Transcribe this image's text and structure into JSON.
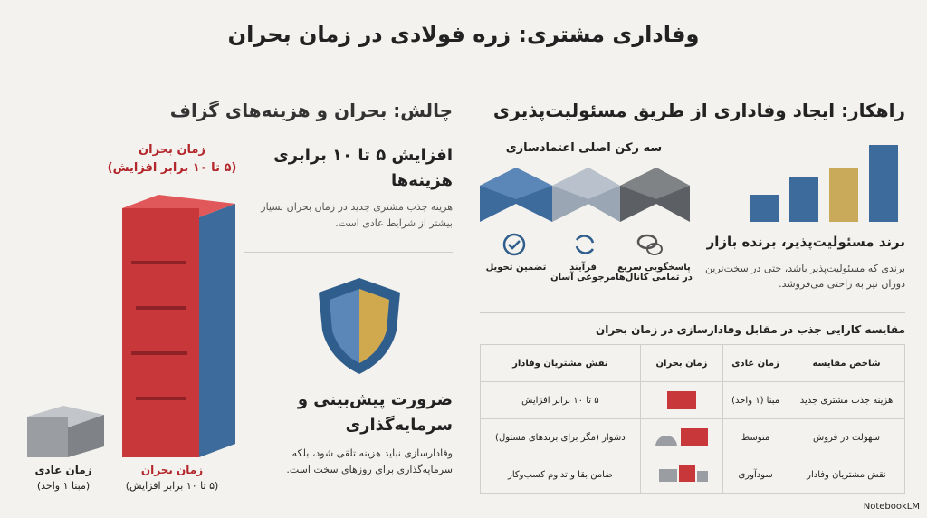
{
  "header": {
    "title": "وفاداری مشتری: زره فولادی در زمان بحران"
  },
  "solution": {
    "title": "راهکار: ایجاد وفاداری از طریق مسئولیت‌پذیری",
    "pillars_title": "سه رکن اصلی اعتمادسازی",
    "pillars": [
      "پاسخگویی سریع در تمامی کانال‌ها",
      "فرآیند مرجوعی آسان",
      "تضمین تحویل"
    ],
    "brand_title": "برند مسئولیت‌پذیر، برنده بازار",
    "brand_text": "برندی که مسئولیت‌پذیر باشد، حتی در سخت‌ترین دوران نیز به راحتی می‌فروشد."
  },
  "table": {
    "title": "مقایسه کارایی جذب در مقابل وفادارسازی در زمان بحران",
    "columns": [
      "شاخص مقایسه",
      "زمان عادی",
      "زمان بحران",
      "نقش مشتریان وفادار"
    ],
    "rows": [
      {
        "label": "هزینه جذب مشتری جدید",
        "normal": "مبنا (۱ واحد)",
        "loyal": "۵ تا ۱۰ برابر افزایش"
      },
      {
        "label": "سهولت در فروش",
        "normal": "متوسط",
        "loyal": "دشوار (مگر برای برندهای مسئول)"
      },
      {
        "label": "نقش مشتریان وفادار",
        "normal": "سودآوری",
        "loyal": "ضامن بقا و تداوم کسب‌وکار"
      }
    ]
  },
  "challenge": {
    "title": "چالش: بحران و هزینه‌های گزاف",
    "top_label": "زمان بحران",
    "top_label_note": "(۵ تا ۱۰ برابر افزایش)",
    "cost_title": "افزایش ۵ تا ۱۰ برابری هزینه‌ها",
    "cost_text": "هزینه جذب مشتری جدید در زمان بحران بسیار بیشتر از شرایط عادی است.",
    "invest_title": "ضرورت پیش‌بینی و سرمایه‌گذاری",
    "invest_text": "وفادارسازی نباید هزینه تلقی شود، بلکه سرمایه‌گذاری برای روزهای سخت است.",
    "crisis_caption": "زمان بحران",
    "crisis_caption_note": "(۵ تا ۱۰ برابر افزایش)",
    "normal_caption": "زمان عادی",
    "normal_caption_note": "(مبنا ۱ واحد)"
  },
  "footer": {
    "brand": "NotebookLM"
  }
}
